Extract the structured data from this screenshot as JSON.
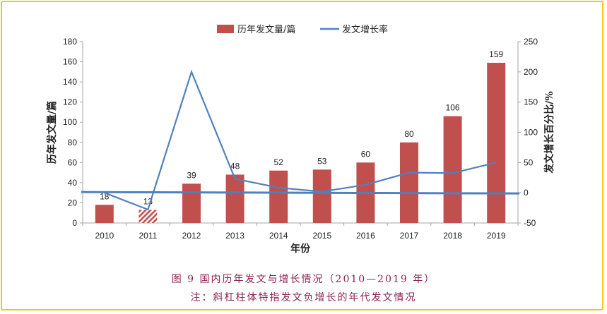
{
  "chart_data": {
    "type": "bar+line",
    "categories": [
      "2010",
      "2011",
      "2012",
      "2013",
      "2014",
      "2015",
      "2016",
      "2017",
      "2018",
      "2019"
    ],
    "series": [
      {
        "name": "历年发文量/篇",
        "kind": "bar",
        "axis": "left",
        "color": "#c0504d",
        "values": [
          18,
          13,
          39,
          48,
          52,
          53,
          60,
          80,
          106,
          159
        ],
        "hatched_categories": [
          "2011"
        ]
      },
      {
        "name": "发文增长率",
        "kind": "line",
        "axis": "right",
        "color": "#4f81bd",
        "values": [
          0,
          -27.8,
          200,
          23.1,
          8.3,
          1.9,
          13.2,
          33.3,
          32.5,
          50
        ]
      }
    ],
    "xlabel": "年份",
    "ylabel": "历年发文量/篇",
    "y2label": "发文增长百分比/%",
    "ylim": [
      0,
      180
    ],
    "yticks": [
      0,
      20,
      40,
      60,
      80,
      100,
      120,
      140,
      160,
      180
    ],
    "y2lim": [
      -50,
      250
    ],
    "y2ticks": [
      -50,
      0,
      50,
      100,
      150,
      200,
      250
    ],
    "legend": "top-center",
    "grid": false
  },
  "caption": {
    "title": "图 9  国内历年发文与增长情况（2010—2019 年）",
    "note": "注：斜杠柱体特指发文负增长的年代发文情况"
  }
}
